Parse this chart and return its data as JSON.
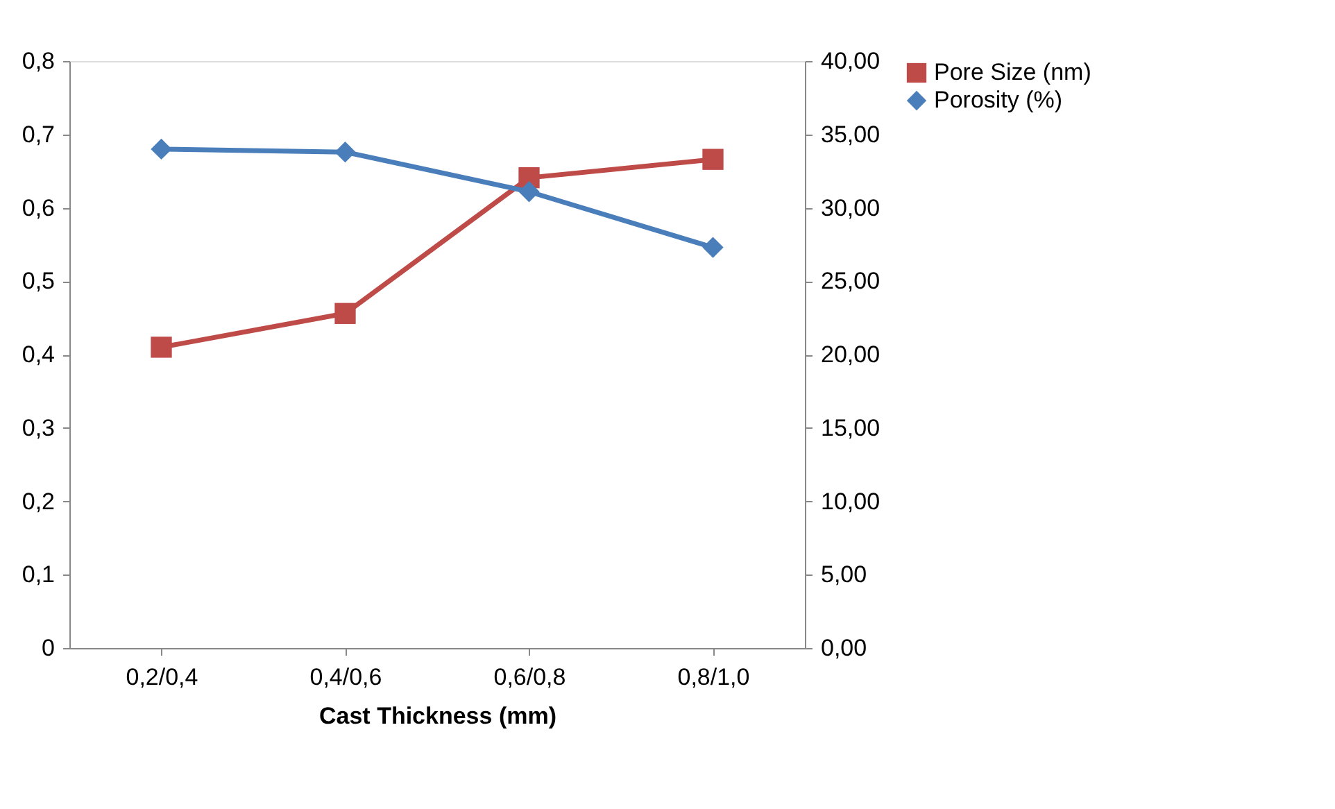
{
  "chart_data": {
    "type": "line",
    "xlabel": "Cast Thickness (mm)",
    "categories": [
      "0,2/0,4",
      "0,4/0,6",
      "0,6/0,8",
      "0,8/1,0"
    ],
    "series": [
      {
        "name": "Pore Size (nm)",
        "color": "#be4b48",
        "marker": "square",
        "values": [
          0.41,
          0.456,
          0.641,
          0.666
        ]
      },
      {
        "name": "Porosity (%)",
        "color": "#4a7ebb",
        "marker": "diamond",
        "axis": "y2",
        "values": [
          34.0,
          33.8,
          31.1,
          27.3
        ]
      }
    ],
    "ylim": [
      0,
      0.8
    ],
    "yticks": [
      0,
      {
        "value": 0.1,
        "label": "0,1"
      },
      {
        "value": 0.2,
        "label": "0,2"
      },
      {
        "value": 0.3,
        "label": "0,3"
      },
      {
        "value": 0.4,
        "label": "0,4"
      },
      {
        "value": 0.5,
        "label": "0,5"
      },
      {
        "value": 0.6,
        "label": "0,6"
      },
      {
        "value": 0.7,
        "label": "0,7"
      },
      {
        "value": 0.8,
        "label": "0,8"
      }
    ],
    "y2lim": [
      0,
      40
    ],
    "y2ticks": [
      {
        "value": 0,
        "label": "0,00"
      },
      {
        "value": 5,
        "label": "5,00"
      },
      {
        "value": 10,
        "label": "10,00"
      },
      {
        "value": 15,
        "label": "15,00"
      },
      {
        "value": 20,
        "label": "20,00"
      },
      {
        "value": 25,
        "label": "25,00"
      },
      {
        "value": 30,
        "label": "30,00"
      },
      {
        "value": 35,
        "label": "35,00"
      },
      {
        "value": 40,
        "label": "40,00"
      }
    ],
    "grid": false,
    "legend": "right",
    "line_style": "solid"
  }
}
